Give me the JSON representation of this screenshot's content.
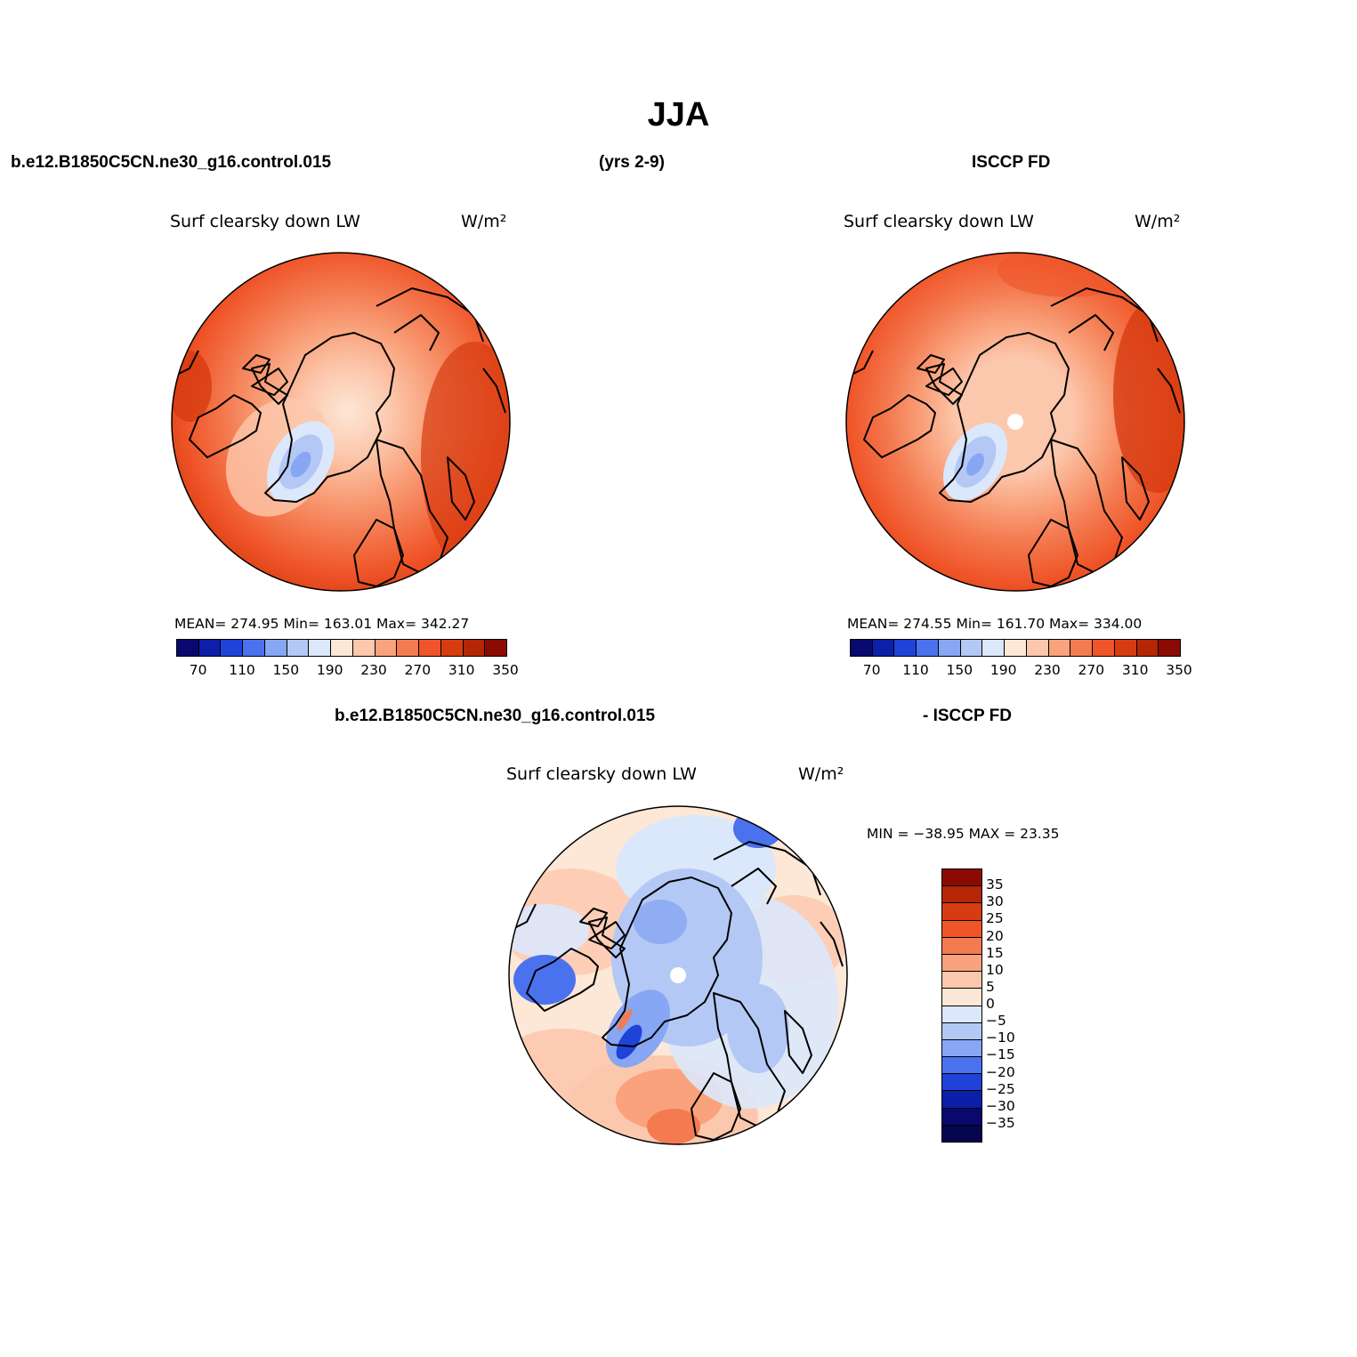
{
  "title": "JJA",
  "header": {
    "case_name": "b.e12.B1850C5CN.ne30_g16.control.015",
    "years": "(yrs 2-9)",
    "obs_name": "ISCCP FD"
  },
  "diff_header": {
    "case_name": "b.e12.B1850C5CN.ne30_g16.control.015",
    "obs_name": "- ISCCP FD"
  },
  "panels": {
    "model": {
      "variable": "Surf clearsky down LW",
      "units": "W/m²",
      "stats": "MEAN= 274.95   Min= 163.01   Max= 342.27",
      "mean": 274.95,
      "min": 163.01,
      "max": 342.27
    },
    "obs": {
      "variable": "Surf clearsky down LW",
      "units": "W/m²",
      "stats": "MEAN= 274.55   Min= 161.70   Max= 334.00",
      "mean": 274.55,
      "min": 161.7,
      "max": 334.0
    },
    "diff": {
      "variable": "Surf clearsky down LW",
      "units": "W/m²",
      "stats": "MIN = −38.95 MAX =  23.35",
      "min": -38.95,
      "max": 23.35
    }
  },
  "colorbar_abs": {
    "labels": [
      "70",
      "110",
      "150",
      "190",
      "230",
      "270",
      "310",
      "350"
    ],
    "colors": [
      "#08086e",
      "#0c1fa8",
      "#1f42d9",
      "#4a72ee",
      "#87a6f3",
      "#b4c8f5",
      "#dbe8fb",
      "#fde7d6",
      "#fcc8ad",
      "#f9a27c",
      "#f47a50",
      "#ef5528",
      "#d73b10",
      "#b52605",
      "#8b0a04"
    ]
  },
  "colorbar_diff": {
    "labels": [
      "35",
      "30",
      "25",
      "20",
      "15",
      "10",
      "5",
      "0",
      "−5",
      "−10",
      "−15",
      "−20",
      "−25",
      "−30",
      "−35"
    ],
    "colors": [
      "#8b0a04",
      "#b52605",
      "#d73b10",
      "#ef5528",
      "#f47a50",
      "#f9a27c",
      "#fcc8ad",
      "#fde7d6",
      "#dbe8fb",
      "#b4c8f5",
      "#87a6f3",
      "#4a72ee",
      "#1f42d9",
      "#0c1fa8",
      "#08086e",
      "#050550"
    ]
  }
}
